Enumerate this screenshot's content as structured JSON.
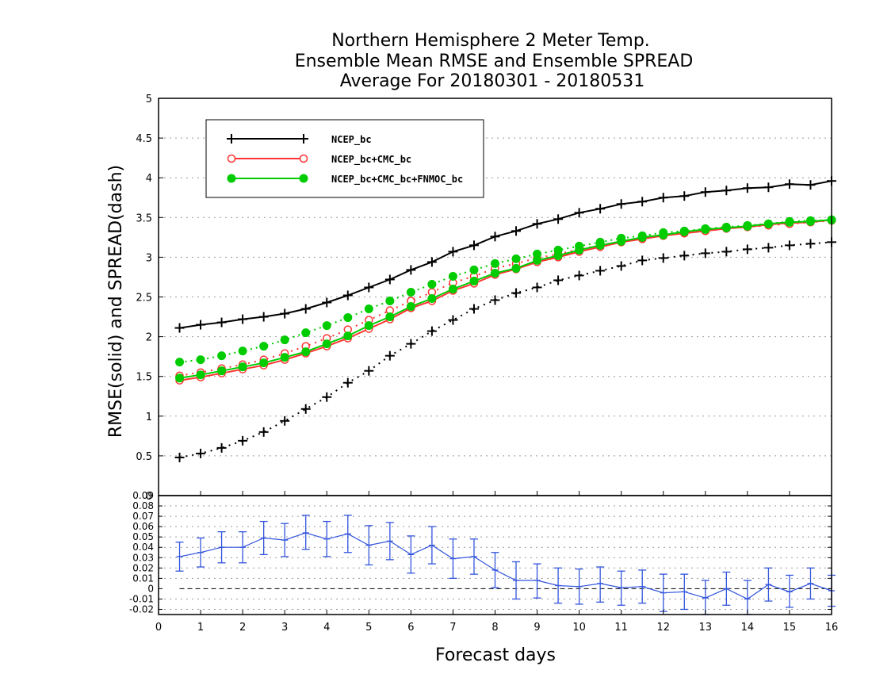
{
  "chart_data": [
    {
      "type": "line",
      "title": [
        "Northern Hemisphere 2 Meter Temp.",
        "Ensemble Mean RMSE and Ensemble SPREAD",
        "Average For 20180301 - 20180531"
      ],
      "xlabel": "Forecast days",
      "ylabel": "RMSE(solid) and SPREAD(dash)",
      "xlim": [
        0,
        16
      ],
      "ylim": [
        0,
        5
      ],
      "x_ticks": [
        "0",
        "1",
        "2",
        "3",
        "4",
        "5",
        "6",
        "7",
        "8",
        "9",
        "10",
        "11",
        "12",
        "13",
        "14",
        "15",
        "16"
      ],
      "y_ticks": [
        "0.5",
        "1",
        "1.5",
        "2",
        "2.5",
        "3",
        "3.5",
        "4",
        "4.5",
        "5"
      ],
      "grid": "horizontal dotted",
      "legend_position": "top-left",
      "x": [
        0.5,
        1,
        1.5,
        2,
        2.5,
        3,
        3.5,
        4,
        4.5,
        5,
        5.5,
        6,
        6.5,
        7,
        7.5,
        8,
        8.5,
        9,
        9.5,
        10,
        10.5,
        11,
        11.5,
        12,
        12.5,
        13,
        13.5,
        14,
        14.5,
        15,
        15.5,
        16
      ],
      "series": [
        {
          "name": "NCEP_bc",
          "color": "#000000",
          "marker": "plus",
          "style": "solid",
          "values": [
            2.11,
            2.15,
            2.18,
            2.22,
            2.25,
            2.29,
            2.35,
            2.43,
            2.52,
            2.62,
            2.72,
            2.84,
            2.94,
            3.07,
            3.15,
            3.26,
            3.33,
            3.42,
            3.48,
            3.56,
            3.61,
            3.67,
            3.7,
            3.75,
            3.77,
            3.82,
            3.84,
            3.87,
            3.88,
            3.92,
            3.91,
            3.96
          ]
        },
        {
          "name": "NCEP_bc",
          "color": "#000000",
          "marker": "plus",
          "style": "dash",
          "values": [
            0.48,
            0.53,
            0.6,
            0.69,
            0.8,
            0.94,
            1.09,
            1.24,
            1.42,
            1.57,
            1.76,
            1.91,
            2.07,
            2.21,
            2.35,
            2.46,
            2.55,
            2.62,
            2.71,
            2.77,
            2.83,
            2.89,
            2.96,
            2.99,
            3.02,
            3.05,
            3.07,
            3.1,
            3.12,
            3.15,
            3.17,
            3.19
          ]
        },
        {
          "name": "NCEP_bc+CMC_bc",
          "color": "#ff3333",
          "marker": "circle-open",
          "style": "solid",
          "values": [
            1.45,
            1.49,
            1.54,
            1.59,
            1.64,
            1.71,
            1.79,
            1.88,
            1.98,
            2.1,
            2.22,
            2.36,
            2.45,
            2.58,
            2.67,
            2.78,
            2.85,
            2.94,
            3.0,
            3.07,
            3.13,
            3.19,
            3.23,
            3.27,
            3.3,
            3.33,
            3.36,
            3.38,
            3.41,
            3.43,
            3.44,
            3.47
          ]
        },
        {
          "name": "NCEP_bc+CMC_bc",
          "color": "#ff3333",
          "marker": "circle-open",
          "style": "dash",
          "values": [
            1.51,
            1.55,
            1.6,
            1.65,
            1.71,
            1.79,
            1.88,
            1.98,
            2.09,
            2.21,
            2.33,
            2.45,
            2.56,
            2.68,
            2.76,
            2.86,
            2.92,
            2.99,
            3.04,
            3.1,
            3.15,
            3.2,
            3.24,
            3.27,
            3.31,
            3.33,
            3.36,
            3.38,
            3.4,
            3.42,
            3.44,
            3.46
          ]
        },
        {
          "name": "NCEP_bc+CMC_bc+FNMOC_bc",
          "color": "#00cc00",
          "marker": "circle-filled",
          "style": "solid",
          "values": [
            1.48,
            1.52,
            1.57,
            1.62,
            1.67,
            1.74,
            1.81,
            1.91,
            2.01,
            2.14,
            2.25,
            2.38,
            2.48,
            2.6,
            2.7,
            2.8,
            2.86,
            2.96,
            3.02,
            3.09,
            3.15,
            3.2,
            3.25,
            3.28,
            3.32,
            3.35,
            3.37,
            3.39,
            3.42,
            3.44,
            3.45,
            3.47
          ]
        },
        {
          "name": "NCEP_bc+CMC_bc+FNMOC_bc",
          "color": "#00cc00",
          "marker": "circle-filled",
          "style": "dot",
          "values": [
            1.68,
            1.71,
            1.76,
            1.82,
            1.88,
            1.96,
            2.05,
            2.14,
            2.24,
            2.35,
            2.45,
            2.56,
            2.66,
            2.76,
            2.84,
            2.92,
            2.98,
            3.04,
            3.09,
            3.14,
            3.19,
            3.24,
            3.27,
            3.31,
            3.33,
            3.36,
            3.38,
            3.4,
            3.42,
            3.45,
            3.46,
            3.47
          ]
        }
      ]
    },
    {
      "type": "line",
      "xlim": [
        0,
        16
      ],
      "ylim": [
        -0.025,
        0.09
      ],
      "y_ticks": [
        "-0.02",
        "-0.01",
        "0",
        "0.01",
        "0.02",
        "0.03",
        "0.04",
        "0.05",
        "0.06",
        "0.07",
        "0.08",
        "0.09"
      ],
      "color": "#3355dd",
      "x": [
        0.5,
        1,
        1.5,
        2,
        2.5,
        3,
        3.5,
        4,
        4.5,
        5,
        5.5,
        6,
        6.5,
        7,
        7.5,
        8,
        8.5,
        9,
        9.5,
        10,
        10.5,
        11,
        11.5,
        12,
        12.5,
        13,
        13.5,
        14,
        14.5,
        15,
        15.5,
        16
      ],
      "values": [
        0.031,
        0.035,
        0.04,
        0.04,
        0.049,
        0.047,
        0.054,
        0.048,
        0.053,
        0.042,
        0.046,
        0.033,
        0.042,
        0.029,
        0.031,
        0.018,
        0.008,
        0.008,
        0.003,
        0.002,
        0.005,
        0.001,
        0.002,
        -0.004,
        -0.003,
        -0.009,
        0.0,
        -0.01,
        0.004,
        -0.003,
        0.005,
        -0.002
      ],
      "error_low": [
        0.017,
        0.021,
        0.025,
        0.025,
        0.033,
        0.031,
        0.038,
        0.031,
        0.035,
        0.023,
        0.028,
        0.015,
        0.024,
        0.01,
        0.014,
        0.001,
        -0.01,
        -0.009,
        -0.014,
        -0.015,
        -0.013,
        -0.016,
        -0.014,
        -0.022,
        -0.02,
        -0.026,
        -0.016,
        -0.027,
        -0.012,
        -0.018,
        -0.01,
        -0.017
      ],
      "error_high": [
        0.045,
        0.049,
        0.055,
        0.055,
        0.065,
        0.063,
        0.071,
        0.065,
        0.071,
        0.061,
        0.064,
        0.051,
        0.06,
        0.048,
        0.048,
        0.035,
        0.026,
        0.024,
        0.02,
        0.019,
        0.021,
        0.017,
        0.018,
        0.014,
        0.014,
        0.008,
        0.016,
        0.008,
        0.02,
        0.013,
        0.02,
        0.013
      ]
    }
  ]
}
